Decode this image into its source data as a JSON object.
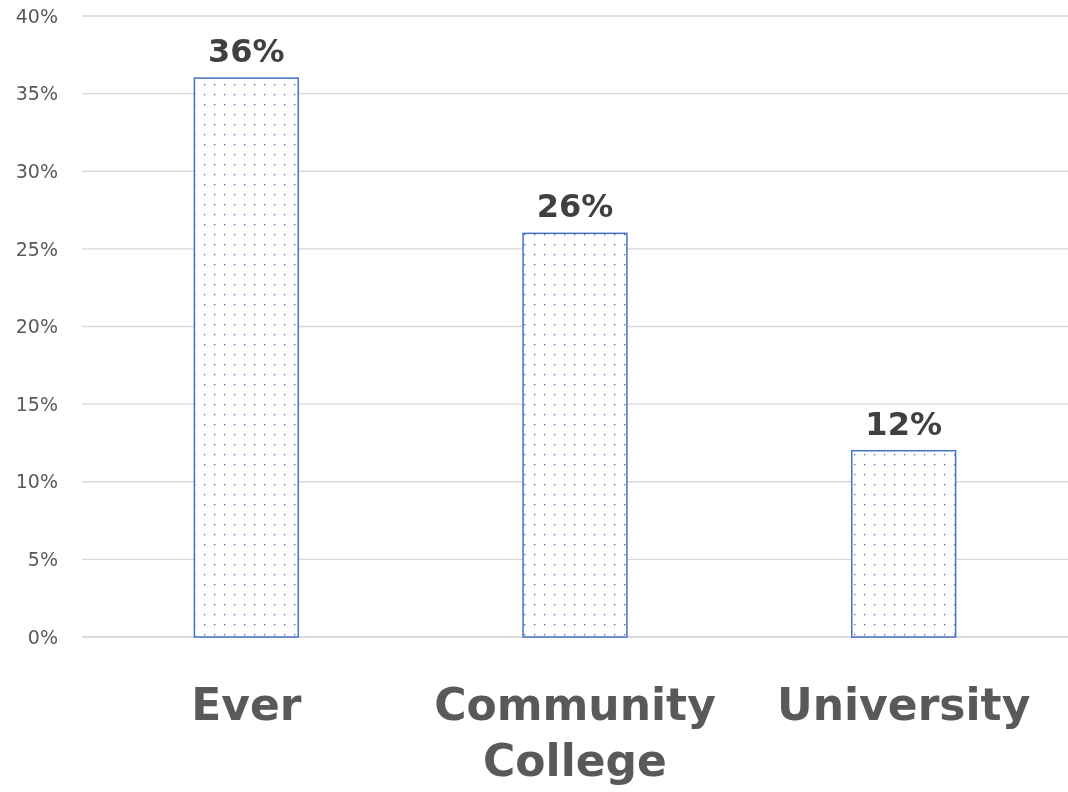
{
  "chart_data": {
    "type": "bar",
    "categories": [
      "Ever",
      "Community College",
      "University"
    ],
    "values": [
      36,
      26,
      12
    ],
    "value_labels": [
      "36%",
      "26%",
      "12%"
    ],
    "color": "#4472c4",
    "ylim": [
      0,
      40
    ],
    "yticks": [
      {
        "value": 0,
        "label": "0%"
      },
      {
        "value": 5,
        "label": "5%"
      },
      {
        "value": 10,
        "label": "10%"
      },
      {
        "value": 15,
        "label": "15%"
      },
      {
        "value": 20,
        "label": "20%"
      },
      {
        "value": 25,
        "label": "25%"
      },
      {
        "value": 30,
        "label": "30%"
      },
      {
        "value": 35,
        "label": "35%"
      },
      {
        "value": 40,
        "label": "40%"
      }
    ],
    "grid": "y"
  }
}
